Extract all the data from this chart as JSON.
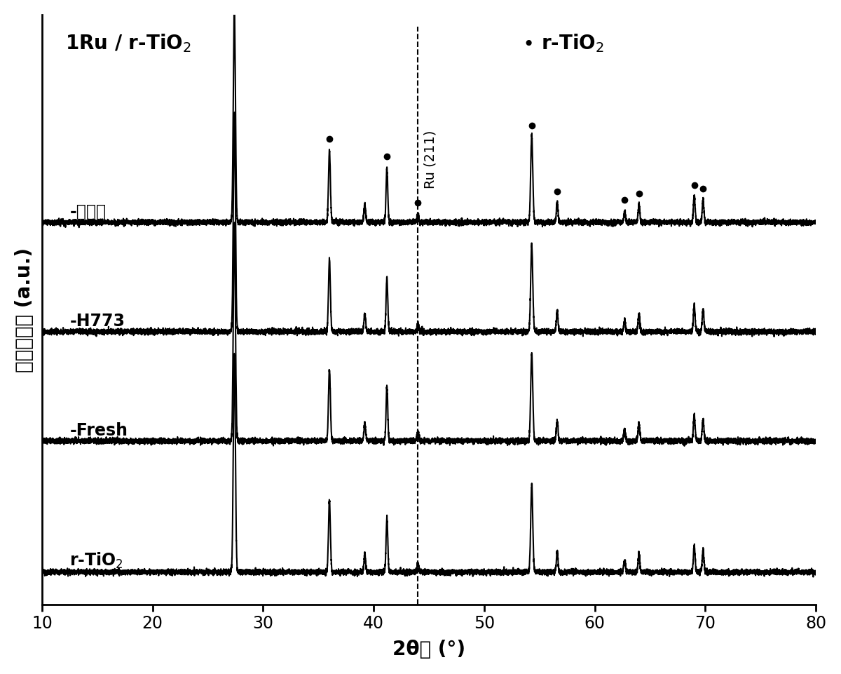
{
  "title_left": "1Ru / r-TiO$_2$",
  "title_right": "r-TiO$_2$",
  "xlabel": "2θ角 (°)",
  "ylabel": "衍射峰强度 (a.u.)",
  "xmin": 10,
  "xmax": 80,
  "dashed_line_x": 44.0,
  "dashed_line_label": "Ru (211)",
  "curve_labels": [
    "-反应后",
    "-H773",
    "-Fresh",
    "r-TiO$_2$"
  ],
  "curve_offsets": [
    1.6,
    1.1,
    0.6,
    0.0
  ],
  "peaks": [
    27.4,
    36.0,
    39.2,
    41.2,
    44.0,
    54.3,
    56.6,
    62.7,
    64.0,
    69.0,
    69.8
  ],
  "peak_heights": [
    1.0,
    0.33,
    0.08,
    0.25,
    0.04,
    0.4,
    0.09,
    0.05,
    0.08,
    0.12,
    0.1
  ],
  "peak_widths": [
    0.22,
    0.2,
    0.18,
    0.18,
    0.18,
    0.22,
    0.18,
    0.18,
    0.18,
    0.18,
    0.18
  ],
  "dot_positions": [
    36.0,
    41.2,
    44.0,
    54.3,
    56.6,
    62.7,
    64.0,
    69.0,
    69.8
  ],
  "background_color": "#ffffff",
  "line_color": "#000000",
  "line_width": 1.5,
  "noise_amp": 0.006,
  "fontsize_title": 20,
  "fontsize_axis_label": 20,
  "fontsize_tick": 17,
  "fontsize_curve_label": 17
}
